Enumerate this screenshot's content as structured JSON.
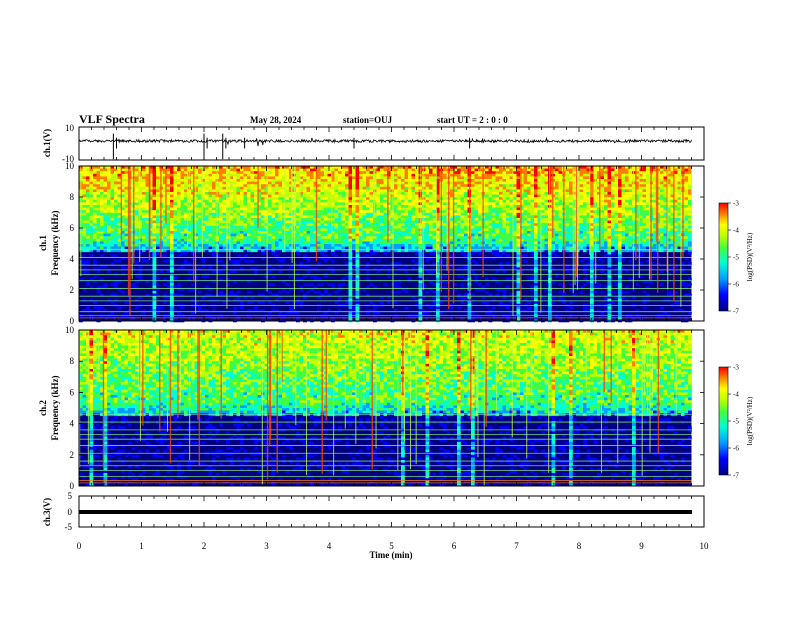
{
  "header": {
    "title": "VLF Spectra",
    "date": "May 28, 2024",
    "station": "station=OUJ",
    "start_ut": "start  UT =  2 : 0  : 0"
  },
  "colors": {
    "spectrogram_scale": [
      "#000080",
      "#0000ff",
      "#00a0ff",
      "#00ffd0",
      "#40ff40",
      "#c0ff00",
      "#ffff00",
      "#ff8000",
      "#ff0000"
    ],
    "waveform": "#000000"
  },
  "chart_data": [
    {
      "type": "line",
      "name": "ch1-waveform",
      "ylabel": "ch.1(V)",
      "ylim": [
        -10,
        10
      ],
      "yticks": [
        "10",
        "-10"
      ],
      "x_range_min": [
        0,
        9.8
      ],
      "baseline_v": 1.5,
      "note_values": "noisy waveform around +1.5 V with spikes near 0.55, 2.0, 2.3 min"
    },
    {
      "type": "heatmap",
      "name": "ch1-spectrogram",
      "ylabel": "ch.1\nFrequency  (kHz)",
      "ylim": [
        0,
        10
      ],
      "yticks": [
        "0",
        "2",
        "4",
        "6",
        "8",
        "10"
      ],
      "x_range_min": [
        0,
        9.8
      ],
      "colorbar": {
        "label": "log(PSD)(V²/Hz)",
        "range": [
          -7,
          -3
        ],
        "ticks": [
          "-3",
          "-4",
          "-5",
          "-6",
          "-7"
        ]
      }
    },
    {
      "type": "heatmap",
      "name": "ch2-spectrogram",
      "ylabel": "ch.2\nFrequency  (kHz)",
      "ylim": [
        0,
        10
      ],
      "yticks": [
        "0",
        "2",
        "4",
        "6",
        "8",
        "10"
      ],
      "x_range_min": [
        0,
        9.8
      ],
      "colorbar": {
        "label": "log(PSD)(V²/Hz)",
        "range": [
          -7,
          -3
        ],
        "ticks": [
          "-3",
          "-4",
          "-5",
          "-6",
          "-7"
        ]
      }
    },
    {
      "type": "line",
      "name": "ch3-waveform",
      "ylabel": "ch.3(V)",
      "ylim": [
        -5,
        5
      ],
      "yticks": [
        "5",
        "0",
        "-5"
      ],
      "x_range_min": [
        0,
        9.8
      ],
      "constant_v": 0
    }
  ],
  "xaxis": {
    "label": "Time  (min)",
    "range": [
      0,
      10
    ],
    "ticks": [
      "0",
      "1",
      "2",
      "3",
      "4",
      "5",
      "6",
      "7",
      "8",
      "9",
      "10"
    ]
  },
  "ch1_axis": {
    "label": "ch.1(V)",
    "top": "10",
    "bottom": "-10"
  },
  "ch2_axis": {
    "label": "ch.3(V)",
    "top": "5",
    "mid": "0",
    "bottom": "-5"
  },
  "spec1_label": {
    "line1": "ch.1",
    "line2": "Frequency  (kHz)"
  },
  "spec2_label": {
    "line1": "ch.2",
    "line2": "Frequency  (kHz)"
  },
  "cb_label": "log(PSD)(V²/Hz)",
  "cb_ticks": [
    "-3",
    "-4",
    "-5",
    "-6",
    "-7"
  ],
  "freq_ticks": [
    "0",
    "2",
    "4",
    "6",
    "8",
    "10"
  ]
}
